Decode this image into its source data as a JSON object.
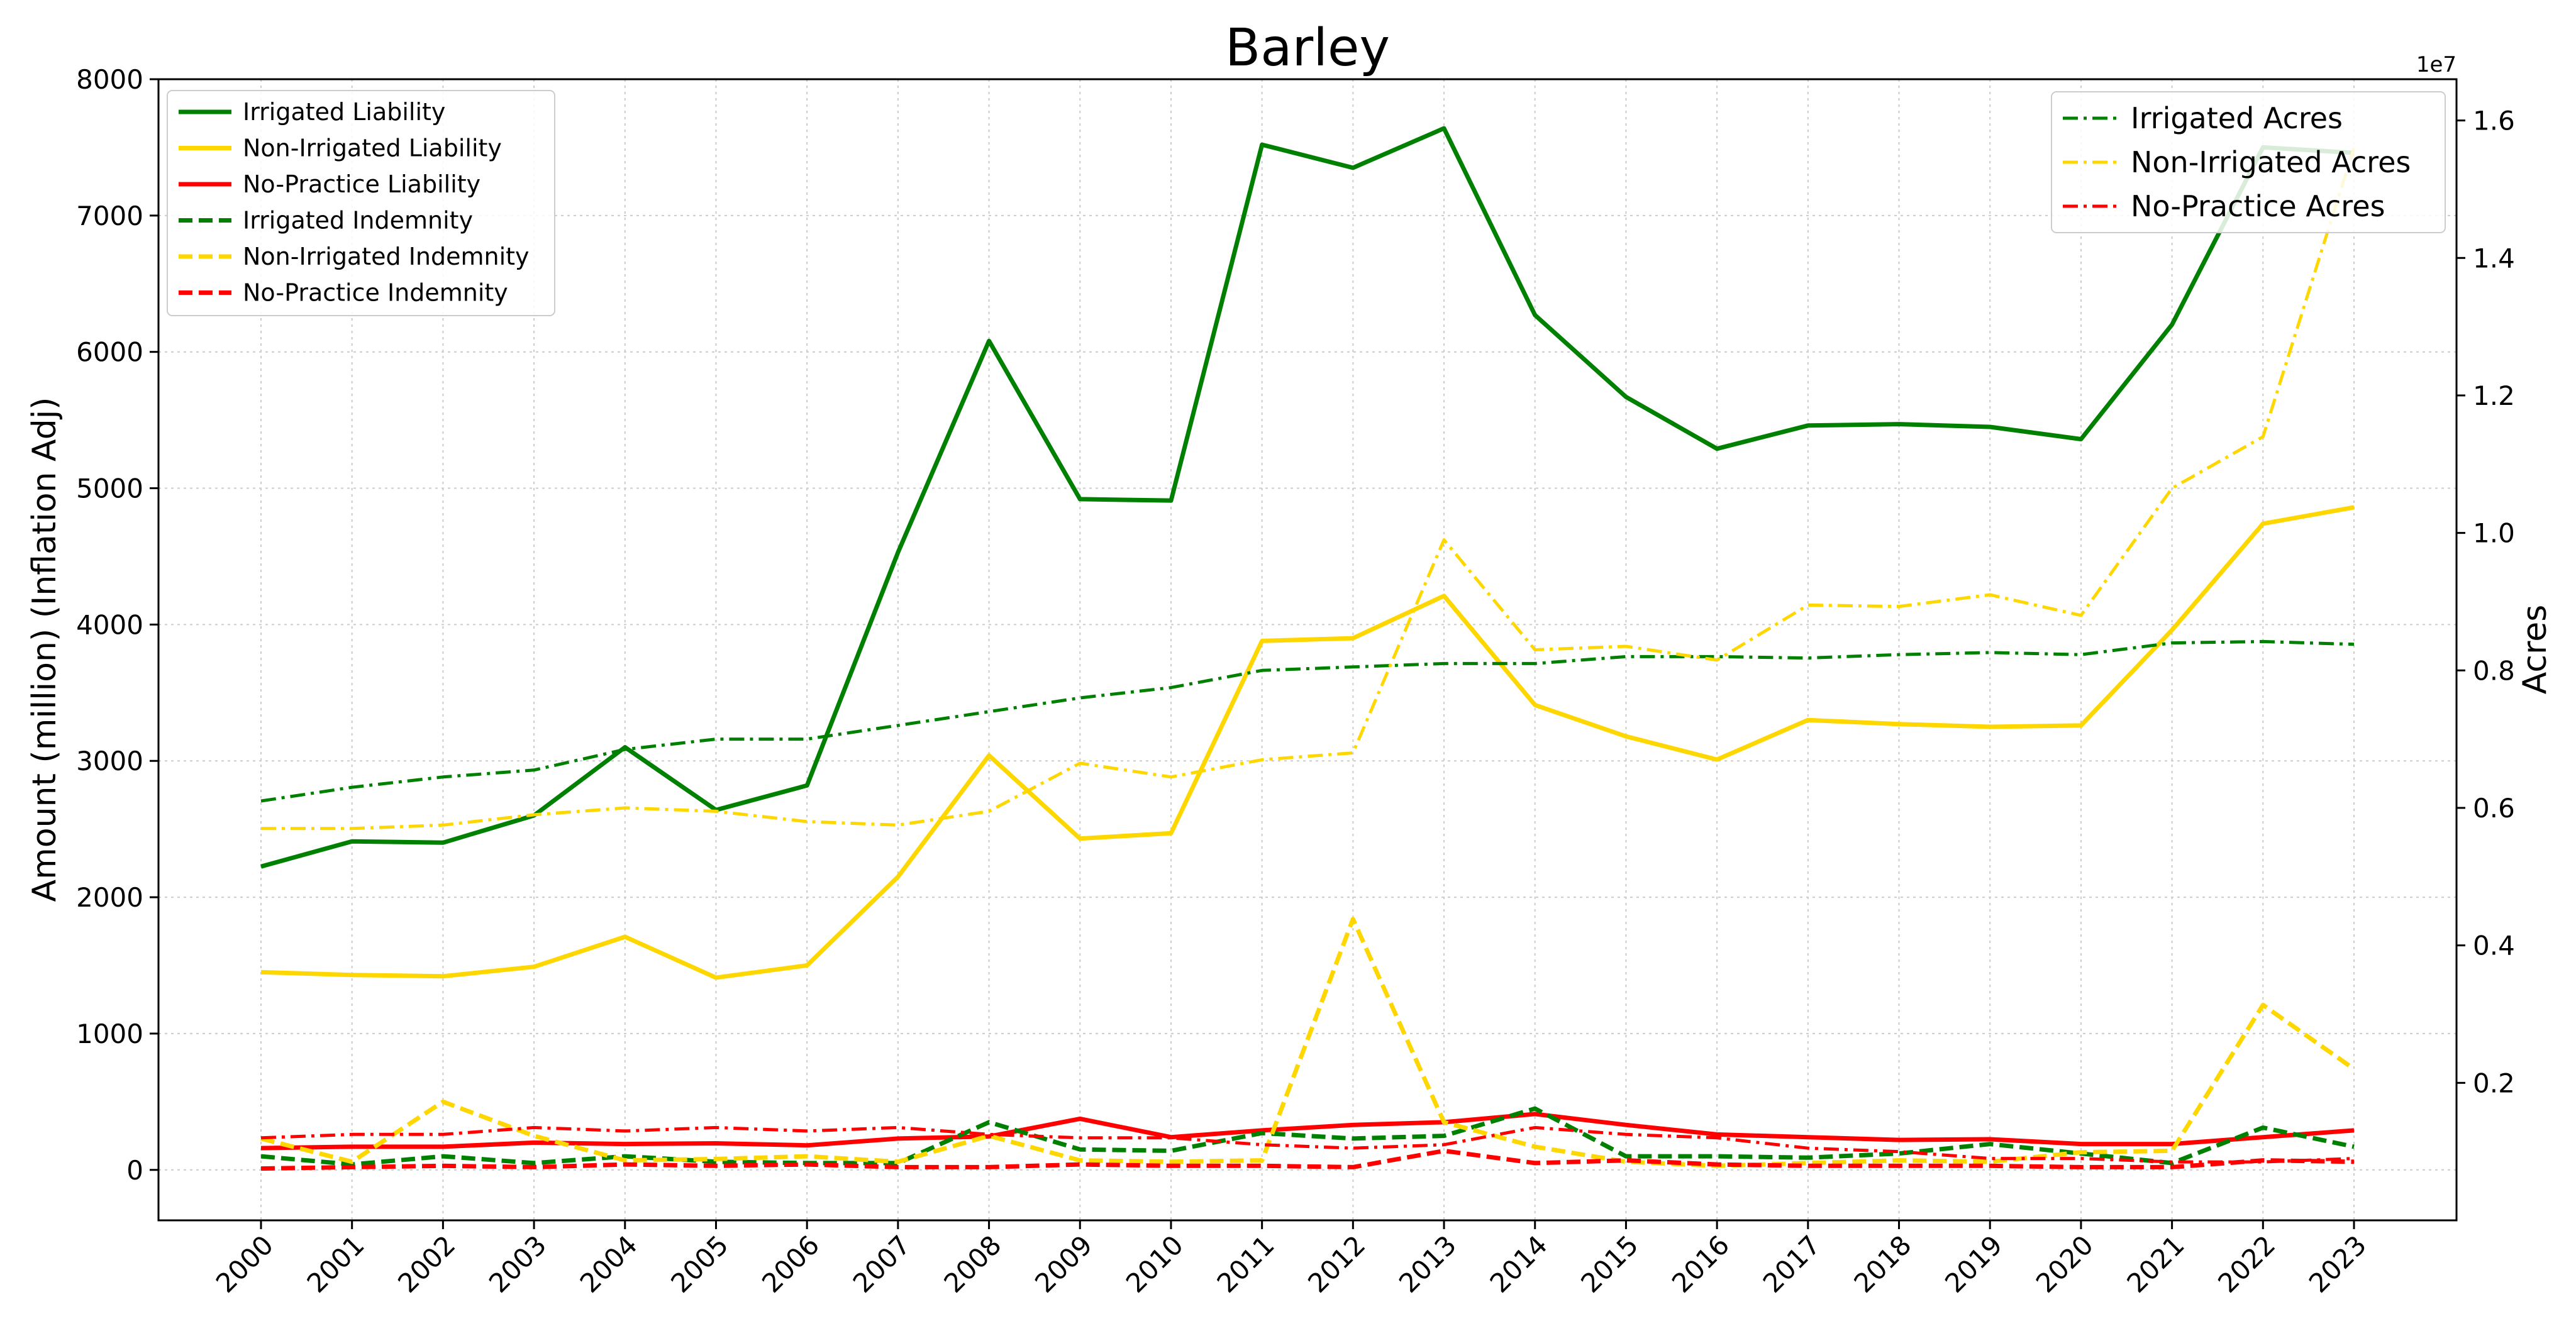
{
  "chart_data": {
    "type": "line",
    "title": "Barley",
    "ylabel": "Amount (million) (Inflation Adj)",
    "y2label": "Acres",
    "y2_offset_label": "1e7",
    "ylim": [
      -370,
      8000
    ],
    "y2lim": [
      0.0,
      1.66
    ],
    "y2_scale": 10000000,
    "yticks": [
      "0",
      "1000",
      "2000",
      "3000",
      "4000",
      "5000",
      "6000",
      "7000",
      "8000"
    ],
    "y2ticks": [
      "0.2",
      "0.4",
      "0.6",
      "0.8",
      "1.0",
      "1.2",
      "1.4",
      "1.6"
    ],
    "grid": true,
    "legend_left_placement": "upper-left",
    "legend_right_placement": "upper-right",
    "x": [
      "2000",
      "2001",
      "2002",
      "2003",
      "2004",
      "2005",
      "2006",
      "2007",
      "2008",
      "2009",
      "2010",
      "2011",
      "2012",
      "2013",
      "2014",
      "2015",
      "2016",
      "2017",
      "2018",
      "2019",
      "2020",
      "2021",
      "2022",
      "2023"
    ],
    "series": [
      {
        "name": "Irrigated Liability",
        "axis": "left",
        "color": "#008000",
        "style": "solid",
        "values": [
          2225,
          2410,
          2400,
          2600,
          3100,
          2640,
          2820,
          4530,
          6080,
          4920,
          4910,
          7520,
          7350,
          7640,
          6270,
          5670,
          5290,
          5460,
          5470,
          5450,
          5360,
          6200,
          7500,
          7460
        ]
      },
      {
        "name": "Non-Irrigated Liability",
        "axis": "left",
        "color": "#FFD700",
        "style": "solid",
        "values": [
          1450,
          1430,
          1420,
          1490,
          1710,
          1410,
          1500,
          2150,
          3040,
          2430,
          2470,
          3880,
          3900,
          4210,
          3410,
          3180,
          3010,
          3300,
          3270,
          3250,
          3260,
          3960,
          4740,
          4860
        ]
      },
      {
        "name": "No-Practice Liability",
        "axis": "left",
        "color": "#FF0000",
        "style": "solid",
        "values": [
          160,
          170,
          170,
          200,
          190,
          195,
          180,
          230,
          245,
          375,
          240,
          290,
          330,
          350,
          410,
          330,
          260,
          240,
          220,
          225,
          190,
          190,
          240,
          290
        ]
      },
      {
        "name": "Irrigated Indemnity",
        "axis": "left",
        "color": "#008000",
        "style": "dashed",
        "values": [
          100,
          40,
          100,
          50,
          100,
          60,
          50,
          50,
          350,
          150,
          140,
          270,
          230,
          250,
          450,
          100,
          100,
          90,
          120,
          190,
          120,
          50,
          310,
          170
        ]
      },
      {
        "name": "Non-Irrigated Indemnity",
        "axis": "left",
        "color": "#FFD700",
        "style": "dashed",
        "values": [
          230,
          60,
          500,
          250,
          70,
          80,
          100,
          60,
          250,
          70,
          60,
          70,
          1840,
          350,
          170,
          60,
          30,
          50,
          70,
          60,
          130,
          140,
          1210,
          740
        ]
      },
      {
        "name": "No-Practice Indemnity",
        "axis": "left",
        "color": "#FF0000",
        "style": "dashed",
        "values": [
          10,
          20,
          30,
          20,
          40,
          30,
          40,
          20,
          20,
          40,
          30,
          30,
          20,
          140,
          50,
          70,
          40,
          30,
          30,
          30,
          20,
          20,
          70,
          60
        ]
      },
      {
        "name": "Irrigated Acres",
        "axis": "right",
        "color": "#008000",
        "style": "dashdot",
        "values": [
          0.61,
          0.63,
          0.645,
          0.655,
          0.685,
          0.7,
          0.7,
          0.72,
          0.74,
          0.76,
          0.775,
          0.8,
          0.805,
          0.81,
          0.81,
          0.82,
          0.82,
          0.818,
          0.823,
          0.826,
          0.823,
          0.84,
          0.842,
          0.838
        ]
      },
      {
        "name": "Non-Irrigated Acres",
        "axis": "right",
        "color": "#FFD700",
        "style": "dashdot",
        "values": [
          0.57,
          0.57,
          0.575,
          0.59,
          0.6,
          0.595,
          0.58,
          0.575,
          0.595,
          0.665,
          0.645,
          0.67,
          0.68,
          0.99,
          0.83,
          0.835,
          0.815,
          0.895,
          0.893,
          0.91,
          0.88,
          1.065,
          1.14,
          1.56
        ]
      },
      {
        "name": "No-Practice Acres",
        "axis": "right",
        "color": "#FF0000",
        "style": "dashdot",
        "values": [
          0.12,
          0.125,
          0.125,
          0.135,
          0.13,
          0.135,
          0.13,
          0.135,
          0.125,
          0.12,
          0.12,
          0.11,
          0.105,
          0.11,
          0.135,
          0.125,
          0.12,
          0.105,
          0.1,
          0.09,
          0.09,
          0.085,
          0.085,
          0.09
        ]
      }
    ]
  }
}
